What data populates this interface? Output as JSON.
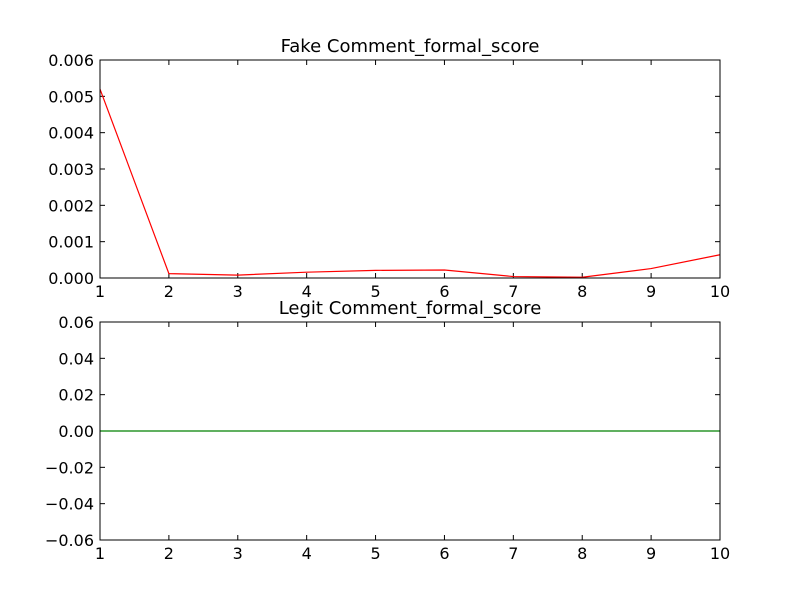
{
  "chart_data": [
    {
      "type": "line",
      "title": "Fake Comment_formal_score",
      "xlabel": "",
      "ylabel": "",
      "xlim": [
        1,
        10
      ],
      "ylim": [
        0,
        0.006
      ],
      "x_ticks": [
        1,
        2,
        3,
        4,
        5,
        6,
        7,
        8,
        9,
        10
      ],
      "x_tick_labels": [
        "1",
        "2",
        "3",
        "4",
        "5",
        "6",
        "7",
        "8",
        "9",
        "10"
      ],
      "y_ticks": [
        0,
        0.001,
        0.002,
        0.003,
        0.004,
        0.005,
        0.006
      ],
      "y_tick_labels": [
        "0.000",
        "0.001",
        "0.002",
        "0.003",
        "0.004",
        "0.005",
        "0.006"
      ],
      "grid": false,
      "legend": "none",
      "series": [
        {
          "color": "#ff0000",
          "x": [
            1,
            2,
            3,
            4,
            5,
            6,
            7,
            8,
            9,
            10
          ],
          "y": [
            0.0052,
            0.00012,
            8e-05,
            0.00016,
            0.00021,
            0.00022,
            4e-05,
            2e-05,
            0.00026,
            0.00064
          ]
        }
      ]
    },
    {
      "type": "line",
      "title": "Legit Comment_formal_score",
      "xlabel": "",
      "ylabel": "",
      "xlim": [
        1,
        10
      ],
      "ylim": [
        -0.06,
        0.06
      ],
      "x_ticks": [
        1,
        2,
        3,
        4,
        5,
        6,
        7,
        8,
        9,
        10
      ],
      "x_tick_labels": [
        "1",
        "2",
        "3",
        "4",
        "5",
        "6",
        "7",
        "8",
        "9",
        "10"
      ],
      "y_ticks": [
        -0.06,
        -0.04,
        -0.02,
        0,
        0.02,
        0.04,
        0.06
      ],
      "y_tick_labels": [
        "−0.06",
        "−0.04",
        "−0.02",
        "0.00",
        "0.02",
        "0.04",
        "0.06"
      ],
      "grid": false,
      "legend": "none",
      "series": [
        {
          "color": "#008000",
          "x": [
            1,
            2,
            3,
            4,
            5,
            6,
            7,
            8,
            9,
            10
          ],
          "y": [
            0,
            0,
            0,
            0,
            0,
            0,
            0,
            0,
            0,
            0
          ]
        }
      ]
    }
  ]
}
